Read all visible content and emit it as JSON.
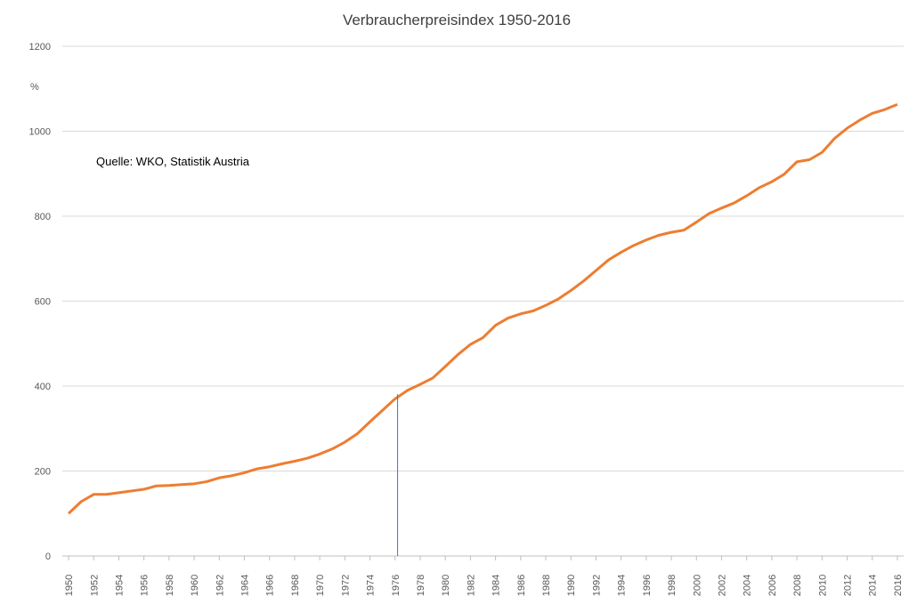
{
  "chart_data": {
    "type": "line",
    "title": "Verbraucherpreisindex 1950-2016",
    "y_unit": "%",
    "annotation": "Quelle: WKO, Statistik Austria",
    "x": [
      1950,
      1951,
      1952,
      1953,
      1954,
      1955,
      1956,
      1957,
      1958,
      1959,
      1960,
      1961,
      1962,
      1963,
      1964,
      1965,
      1966,
      1967,
      1968,
      1969,
      1970,
      1971,
      1972,
      1973,
      1974,
      1975,
      1976,
      1977,
      1978,
      1979,
      1980,
      1981,
      1982,
      1983,
      1984,
      1985,
      1986,
      1987,
      1988,
      1989,
      1990,
      1991,
      1992,
      1993,
      1994,
      1995,
      1996,
      1997,
      1998,
      1999,
      2000,
      2001,
      2002,
      2003,
      2004,
      2005,
      2006,
      2007,
      2008,
      2009,
      2010,
      2011,
      2012,
      2013,
      2014,
      2015,
      2016
    ],
    "series": [
      {
        "color": "#ed7d31",
        "values": [
          100,
          128,
          145,
          145,
          149,
          153,
          157,
          165,
          166,
          168,
          170,
          175,
          184,
          189,
          196,
          205,
          210,
          217,
          223,
          230,
          240,
          252,
          268,
          288,
          316,
          343,
          370,
          390,
          404,
          419,
          446,
          474,
          498,
          514,
          543,
          560,
          570,
          577,
          590,
          605,
          625,
          647,
          672,
          697,
          715,
          731,
          744,
          755,
          762,
          767,
          786,
          806,
          819,
          831,
          848,
          867,
          881,
          899,
          928,
          933,
          950,
          983,
          1007,
          1026,
          1042,
          1051,
          1063
        ]
      }
    ],
    "xlim": [
      1949.5,
      2016.5
    ],
    "xticks": [
      1950,
      1952,
      1954,
      1956,
      1958,
      1960,
      1962,
      1964,
      1966,
      1968,
      1970,
      1972,
      1974,
      1976,
      1978,
      1980,
      1982,
      1984,
      1986,
      1988,
      1990,
      1992,
      1994,
      1996,
      1998,
      2000,
      2002,
      2004,
      2006,
      2008,
      2010,
      2012,
      2014,
      2016
    ],
    "ylim": [
      0,
      1200
    ],
    "yticks": [
      0,
      200,
      400,
      600,
      800,
      1000,
      1200
    ],
    "grid": true,
    "vline": {
      "x": 1976.2,
      "y": 381,
      "color": "#4472c4"
    }
  }
}
